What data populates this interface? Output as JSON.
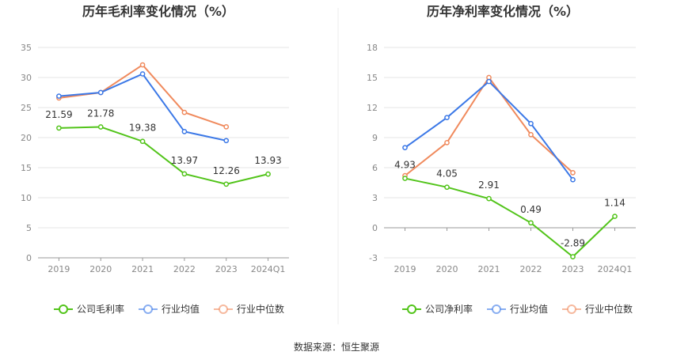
{
  "source": "数据来源：恒生聚源",
  "chart_data": [
    {
      "type": "line",
      "title": "历年毛利率变化情况（%）",
      "categories": [
        "2019",
        "2020",
        "2021",
        "2022",
        "2023",
        "2024Q1"
      ],
      "yticks": [
        0,
        5,
        10,
        15,
        20,
        25,
        30,
        35
      ],
      "ylim": [
        0,
        35
      ],
      "grid": true,
      "legend_position": "bottom",
      "series": [
        {
          "name": "公司毛利率",
          "color": "#52c41a",
          "values": [
            21.59,
            21.78,
            19.38,
            13.97,
            12.26,
            13.93
          ],
          "labels": [
            "21.59",
            "21.78",
            "19.38",
            "13.97",
            "12.26",
            "13.93"
          ]
        },
        {
          "name": "行业均值",
          "color": "#3b78e7",
          "values": [
            26.9,
            27.5,
            30.6,
            21.0,
            19.5,
            null
          ]
        },
        {
          "name": "行业中位数",
          "color": "#f08a5d",
          "values": [
            26.6,
            27.5,
            32.1,
            24.2,
            21.8,
            null
          ]
        }
      ]
    },
    {
      "type": "line",
      "title": "历年净利率变化情况（%）",
      "categories": [
        "2019",
        "2020",
        "2021",
        "2022",
        "2023",
        "2024Q1"
      ],
      "yticks": [
        -3,
        0,
        3,
        6,
        9,
        12,
        15,
        18
      ],
      "ylim": [
        -3,
        18
      ],
      "grid": true,
      "legend_position": "bottom",
      "series": [
        {
          "name": "公司净利率",
          "color": "#52c41a",
          "values": [
            4.93,
            4.05,
            2.91,
            0.49,
            -2.89,
            1.14
          ],
          "labels": [
            "4.93",
            "4.05",
            "2.91",
            "0.49",
            "-2.89",
            "1.14"
          ]
        },
        {
          "name": "行业均值",
          "color": "#3b78e7",
          "values": [
            8.0,
            11.0,
            14.6,
            10.4,
            4.8,
            null
          ]
        },
        {
          "name": "行业中位数",
          "color": "#f08a5d",
          "values": [
            5.2,
            8.5,
            15.0,
            9.3,
            5.5,
            null
          ]
        }
      ]
    }
  ]
}
